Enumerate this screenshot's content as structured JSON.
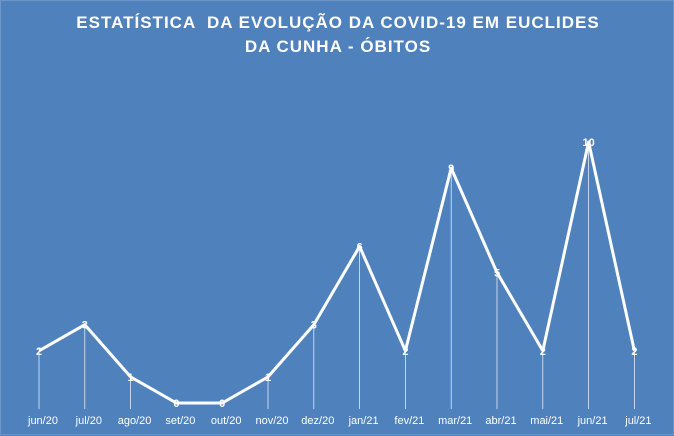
{
  "chart_data": {
    "type": "line",
    "title_lines": [
      "ESTATÍSTICA  DA EVOLUÇÃO DA COVID-19 EM EUCLIDES",
      "DA CUNHA - ÓBITOS"
    ],
    "categories": [
      "jun/20",
      "jul/20",
      "ago/20",
      "set/20",
      "out/20",
      "nov/20",
      "dez/20",
      "jan/21",
      "fev/21",
      "mar/21",
      "abr/21",
      "mai/21",
      "jun/21",
      "jul/21"
    ],
    "values": [
      2,
      3,
      1,
      0,
      0,
      1,
      3,
      6,
      2,
      9,
      5,
      2,
      10,
      2
    ],
    "data_labels": [
      "2",
      "3",
      "1",
      "0",
      "0",
      "1",
      "3",
      "6",
      "2",
      "9",
      "5",
      "2",
      "10",
      "2"
    ],
    "ylim": [
      0,
      10
    ],
    "grid": false,
    "legend": "none",
    "colors": {
      "background": "#4f81bd",
      "line": "#ffffff",
      "drop_lines": "#ffffff",
      "text": "#ffffff"
    }
  }
}
